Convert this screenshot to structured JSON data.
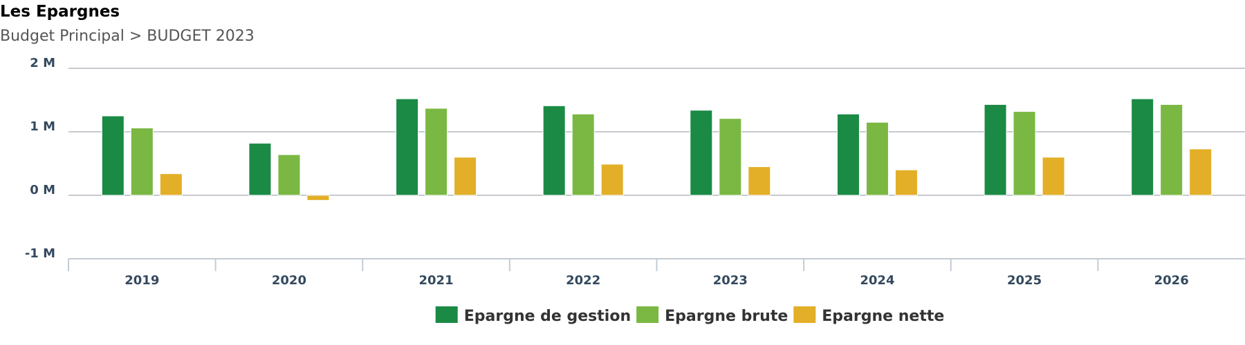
{
  "header": {
    "title": "Les Epargnes",
    "subtitle": "Budget Principal > BUDGET 2023"
  },
  "chart_data": {
    "type": "bar",
    "title": "Les Epargnes",
    "subtitle": "Budget Principal > BUDGET 2023",
    "categories": [
      "2019",
      "2020",
      "2021",
      "2022",
      "2023",
      "2024",
      "2025",
      "2026"
    ],
    "series": [
      {
        "name": "Epargne de gestion",
        "color": "#1b8a45",
        "values": [
          1.25,
          0.82,
          1.52,
          1.41,
          1.34,
          1.28,
          1.43,
          1.52
        ]
      },
      {
        "name": "Epargne brute",
        "color": "#7ab843",
        "values": [
          1.06,
          0.64,
          1.37,
          1.28,
          1.21,
          1.15,
          1.32,
          1.43
        ]
      },
      {
        "name": "Epargne nette",
        "color": "#e3af28",
        "values": [
          0.34,
          -0.08,
          0.6,
          0.49,
          0.45,
          0.4,
          0.6,
          0.73
        ]
      }
    ],
    "yticks": [
      {
        "value": 2,
        "label": "2 M"
      },
      {
        "value": 1,
        "label": "1 M"
      },
      {
        "value": 0,
        "label": "0 M"
      },
      {
        "value": -1,
        "label": "-1 M"
      }
    ],
    "ylim": [
      -1,
      2
    ],
    "grid": true,
    "legend_position": "bottom-center"
  }
}
